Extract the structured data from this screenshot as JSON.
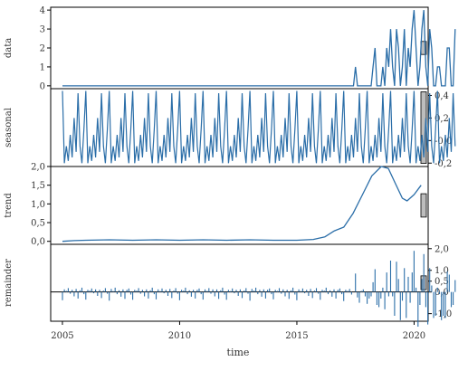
{
  "chart_data": {
    "type": "line",
    "subtype": "stl-decomposition",
    "series_color": "#2b6ea8",
    "xlabel": "time",
    "xlim": [
      2004.5,
      2020.6
    ],
    "xticks": [
      2005,
      2010,
      2015,
      2020
    ],
    "xtick_labels": [
      "2005",
      "2010",
      "2015",
      "2020"
    ],
    "panels": [
      {
        "key": "data",
        "ylabel": "data",
        "axis_side": "left",
        "ylim": [
          -0.15,
          4.15
        ],
        "yticks": [
          0,
          1,
          2,
          3,
          4
        ],
        "ytick_labels": [
          "0",
          "1",
          "2",
          "3",
          "4"
        ],
        "range_bar": 0.9,
        "style": "line"
      },
      {
        "key": "seasonal",
        "ylabel": "seasonal",
        "axis_side": "right",
        "ylim": [
          -0.23,
          0.46
        ],
        "yticks": [
          -0.2,
          0.0,
          0.2,
          0.4
        ],
        "ytick_labels": [
          "-0,2",
          "-0,0",
          "0,2",
          "0,4"
        ],
        "range_bar": 0.68,
        "style": "line"
      },
      {
        "key": "trend",
        "ylabel": "trend",
        "axis_side": "left",
        "ylim": [
          -0.08,
          2.0
        ],
        "yticks": [
          0.0,
          0.5,
          1.0,
          1.5,
          2.0
        ],
        "ytick_labels": [
          "0,0",
          "0,5",
          "1,0",
          "1,5",
          "2,0"
        ],
        "range_bar": 0.95,
        "style": "line"
      },
      {
        "key": "remainder",
        "ylabel": "remainder",
        "axis_side": "right",
        "ylim": [
          -1.35,
          2.2
        ],
        "yticks": [
          -1.0,
          0.0,
          0.5,
          1.0,
          2.0
        ],
        "ytick_labels": [
          "-1,0",
          "0,0",
          "0,5",
          "1,0",
          "2,0"
        ],
        "range_bar": 0.7,
        "style": "bars"
      }
    ],
    "monthly": {
      "start": 2005,
      "step": 0.08333,
      "seasonal_pattern": [
        0.44,
        -0.2,
        -0.05,
        -0.18,
        0.05,
        -0.15,
        0.2,
        -0.1,
        0.42,
        -0.05,
        -0.2,
        0.1
      ],
      "data": [
        0,
        0,
        0,
        0,
        0,
        0,
        0,
        0,
        0,
        0,
        0,
        0,
        0,
        0,
        0,
        0,
        0,
        0,
        0,
        0,
        0,
        0,
        0,
        0,
        0,
        0,
        0,
        0,
        0,
        0,
        0,
        0,
        0,
        0,
        0,
        0,
        0,
        0,
        0,
        0,
        0,
        0,
        0,
        0,
        0,
        0,
        0,
        0,
        0,
        0,
        0,
        0,
        0,
        0,
        0,
        0,
        0,
        0,
        0,
        0,
        0,
        0,
        0,
        0,
        0,
        0,
        0,
        0,
        0,
        0,
        0,
        0,
        0,
        0,
        0,
        0,
        0,
        0,
        0,
        0,
        0,
        0,
        0,
        0,
        0,
        0,
        0,
        0,
        0,
        0,
        0,
        0,
        0,
        0,
        0,
        0,
        0,
        0,
        0,
        0,
        0,
        0,
        0,
        0,
        0,
        0,
        0,
        0,
        0,
        0,
        0,
        0,
        0,
        0,
        0,
        0,
        0,
        0,
        0,
        0,
        0,
        0,
        0,
        0,
        0,
        0,
        0,
        0,
        0,
        0,
        0,
        0,
        0,
        0,
        0,
        0,
        0,
        0,
        0,
        0,
        0,
        0,
        0,
        0,
        0,
        0,
        0,
        0,
        0,
        0,
        1,
        0,
        0,
        0,
        0,
        0,
        0,
        0,
        0,
        1,
        2,
        0,
        0,
        0,
        1,
        0,
        2,
        1,
        3,
        1,
        0,
        3,
        2,
        0,
        1,
        3,
        0,
        2,
        1,
        3,
        4,
        2,
        0,
        1,
        3,
        4,
        1,
        0,
        3,
        2,
        0,
        0,
        1,
        1,
        0,
        0,
        0,
        2,
        2,
        0,
        0,
        3
      ]
    },
    "trend_points": [
      [
        2005.0,
        0.0
      ],
      [
        2005.5,
        0.02
      ],
      [
        2006.0,
        0.03
      ],
      [
        2007.0,
        0.04
      ],
      [
        2008.0,
        0.03
      ],
      [
        2009.0,
        0.04
      ],
      [
        2010.0,
        0.03
      ],
      [
        2011.0,
        0.04
      ],
      [
        2012.0,
        0.03
      ],
      [
        2013.0,
        0.04
      ],
      [
        2014.0,
        0.03
      ],
      [
        2015.0,
        0.03
      ],
      [
        2015.7,
        0.05
      ],
      [
        2016.2,
        0.12
      ],
      [
        2016.6,
        0.28
      ],
      [
        2017.0,
        0.38
      ],
      [
        2017.4,
        0.75
      ],
      [
        2017.8,
        1.25
      ],
      [
        2018.2,
        1.75
      ],
      [
        2018.6,
        2.0
      ],
      [
        2018.9,
        1.95
      ],
      [
        2019.2,
        1.55
      ],
      [
        2019.5,
        1.15
      ],
      [
        2019.7,
        1.08
      ],
      [
        2020.0,
        1.25
      ],
      [
        2020.3,
        1.5
      ]
    ],
    "remainder_bars": {
      "start": 2005,
      "step": 0.08333,
      "values": [
        -0.38,
        0.12,
        0.05,
        0.18,
        -0.08,
        0.1,
        -0.2,
        0.14,
        -0.3,
        0.08,
        0.2,
        -0.1,
        -0.35,
        0.1,
        0.06,
        0.16,
        -0.06,
        0.12,
        -0.18,
        0.1,
        -0.28,
        0.06,
        0.18,
        -0.08,
        -0.4,
        0.14,
        0.04,
        0.2,
        -0.1,
        0.08,
        -0.22,
        0.12,
        -0.32,
        0.1,
        0.16,
        -0.12,
        -0.36,
        0.1,
        0.06,
        0.18,
        -0.08,
        0.1,
        -0.2,
        0.12,
        -0.3,
        0.08,
        0.2,
        -0.1,
        -0.34,
        0.12,
        0.04,
        0.16,
        -0.06,
        0.1,
        -0.18,
        0.14,
        -0.28,
        0.06,
        0.18,
        -0.08,
        -0.38,
        0.1,
        0.06,
        0.2,
        -0.1,
        0.08,
        -0.22,
        0.1,
        -0.3,
        0.1,
        0.16,
        -0.1,
        -0.35,
        0.12,
        0.05,
        0.18,
        -0.08,
        0.12,
        -0.2,
        0.12,
        -0.32,
        0.08,
        0.2,
        -0.12,
        -0.36,
        0.1,
        0.04,
        0.16,
        -0.06,
        0.1,
        -0.18,
        0.12,
        -0.28,
        0.06,
        0.18,
        -0.08,
        -0.4,
        0.14,
        0.06,
        0.2,
        -0.1,
        0.1,
        -0.22,
        0.12,
        -0.3,
        0.1,
        0.16,
        -0.1,
        -0.34,
        0.1,
        0.05,
        0.18,
        -0.08,
        0.12,
        -0.2,
        0.1,
        -0.32,
        0.08,
        0.2,
        -0.12,
        -0.38,
        0.12,
        0.04,
        0.16,
        -0.06,
        0.1,
        -0.18,
        0.14,
        -0.28,
        0.06,
        0.18,
        -0.08,
        -0.36,
        0.1,
        0.06,
        0.2,
        -0.1,
        0.08,
        -0.22,
        0.12,
        -0.3,
        0.1,
        0.16,
        -0.1,
        -0.42,
        0.1,
        0.05,
        0.14,
        -0.12,
        0.0,
        0.85,
        -0.25,
        -0.5,
        0.05,
        0.12,
        -0.2,
        -0.55,
        -0.3,
        -0.2,
        0.45,
        1.05,
        -0.6,
        -0.7,
        -0.3,
        0.2,
        -0.8,
        0.9,
        -0.2,
        1.45,
        -0.2,
        -1.1,
        1.4,
        0.6,
        -1.3,
        -0.4,
        1.1,
        -1.2,
        0.7,
        -0.5,
        0.9,
        1.9,
        0.2,
        -1.6,
        -0.6,
        0.6,
        1.75,
        -0.7,
        -1.5,
        1.1,
        0.3,
        -1.2,
        -1.1,
        0.2,
        -0.1,
        -1.3,
        -1.1,
        -1.2,
        0.95,
        0.8,
        -0.7,
        -0.6,
        0.55
      ]
    }
  }
}
